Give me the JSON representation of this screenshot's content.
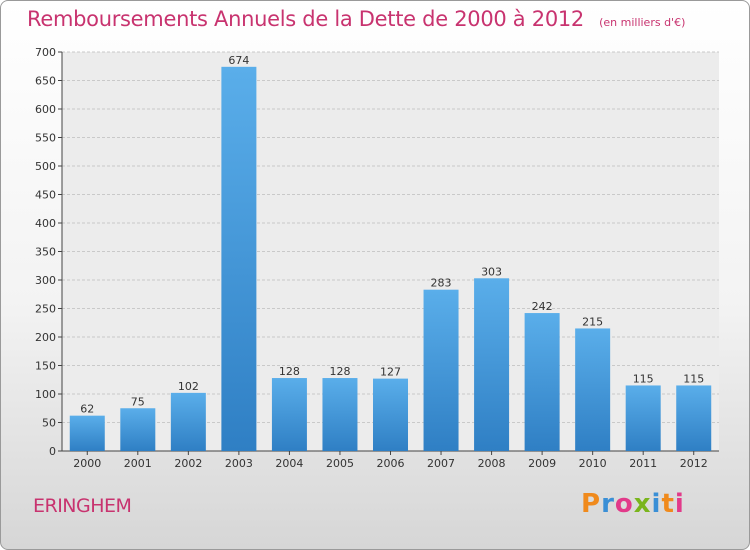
{
  "header": {
    "title": "Remboursements Annuels de la Dette de 2000 à 2012",
    "subtitle": "(en milliers d'€)"
  },
  "commune": "ERINGHEM",
  "logo": {
    "text": "Proxiti",
    "letter_colors": [
      "#f08a1c",
      "#3a8fd6",
      "#e23a8a",
      "#7ab51d",
      "#3a8fd6",
      "#f08a1c",
      "#e23a8a"
    ]
  },
  "colors": {
    "bar_top": "#5aaeea",
    "bar_bottom": "#2f7fc4",
    "title": "#c8336f"
  },
  "chart_data": {
    "type": "bar",
    "categories": [
      "2000",
      "2001",
      "2002",
      "2003",
      "2004",
      "2005",
      "2006",
      "2007",
      "2008",
      "2009",
      "2010",
      "2011",
      "2012"
    ],
    "values": [
      62,
      75,
      102,
      674,
      128,
      128,
      127,
      283,
      303,
      242,
      215,
      115,
      115
    ],
    "data_labels": [
      "62",
      "75",
      "102",
      "674",
      "128",
      "128",
      "127",
      "283",
      "303",
      "242",
      "215",
      "115",
      "115"
    ],
    "title": "Remboursements Annuels de la Dette de 2000 à 2012",
    "subtitle": "(en milliers d'€)",
    "xlabel": "",
    "ylabel": "",
    "ylim": [
      0,
      700
    ],
    "yticks": [
      0,
      50,
      100,
      150,
      200,
      250,
      300,
      350,
      400,
      450,
      500,
      550,
      600,
      650,
      700
    ],
    "grid": true,
    "legend": "none"
  }
}
